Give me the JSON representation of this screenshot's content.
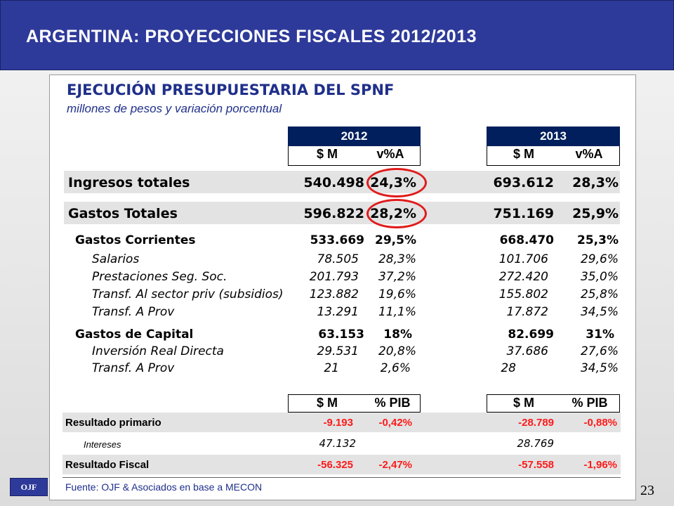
{
  "header": {
    "title": "ARGENTINA: PROYECCIONES FISCALES 2012/2013"
  },
  "panel": {
    "title": "EJECUCIÓN PRESUPUESTARIA DEL SPNF",
    "subtitle": "millones de pesos y variación porcentual",
    "years": [
      "2012",
      "2013"
    ],
    "col_headers_top": [
      "$ M",
      "v%A",
      "$ M",
      "v%A"
    ],
    "col_headers_mid": [
      "$ M",
      "% PIB",
      "$ M",
      "% PIB"
    ],
    "rows": [
      {
        "label": "Ingresos totales",
        "v": [
          "540.498",
          "24,3%",
          "693.612",
          "28,3%"
        ]
      },
      {
        "label": "Gastos Totales",
        "v": [
          "596.822",
          "28,2%",
          "751.169",
          "25,9%"
        ]
      },
      {
        "label": "Gastos Corrientes",
        "v": [
          "533.669",
          "29,5%",
          "668.470",
          "25,3%"
        ]
      },
      {
        "label": "Salarios",
        "v": [
          "78.505",
          "28,3%",
          "101.706",
          "29,6%"
        ]
      },
      {
        "label": "Prestaciones Seg. Soc.",
        "v": [
          "201.793",
          "37,2%",
          "272.420",
          "35,0%"
        ]
      },
      {
        "label": "Transf. Al sector priv (subsidios)",
        "v": [
          "123.882",
          "19,6%",
          "155.802",
          "25,8%"
        ]
      },
      {
        "label": "Transf. A Prov",
        "v": [
          "13.291",
          "11,1%",
          "17.872",
          "34,5%"
        ]
      },
      {
        "label": "Gastos de Capital",
        "v": [
          "63.153",
          "18%",
          "82.699",
          "31%"
        ]
      },
      {
        "label": "Inversión Real Directa",
        "v": [
          "29.531",
          "20,8%",
          "37.686",
          "27,6%"
        ]
      },
      {
        "label": "Transf. A Prov",
        "v": [
          "21",
          "2,6%",
          "28",
          "34,5%"
        ]
      }
    ],
    "results": [
      {
        "label": "Resultado primario",
        "v": [
          "-9.193",
          "-0,42%",
          "-28.789",
          "-0,88%"
        ]
      },
      {
        "label": "Intereses",
        "v": [
          "47.132",
          "",
          "28.769",
          ""
        ]
      },
      {
        "label": "Resultado Fiscal",
        "v": [
          "-56.325",
          "-2,47%",
          "-57.558",
          "-1,96%"
        ]
      }
    ],
    "source": "Fuente: OJF & Asociados en base a MECON"
  },
  "footer": {
    "logo": "OJF",
    "page_number": "23"
  },
  "colors": {
    "header_bg": "#2e3a9a",
    "year_bg": "#001f5c",
    "accent_red": "#ff1a1a",
    "title_blue": "#1f2f8a"
  }
}
